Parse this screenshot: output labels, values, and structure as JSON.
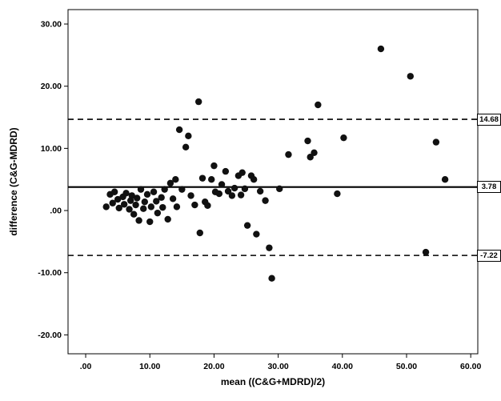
{
  "chart_data": {
    "type": "scatter",
    "title": "",
    "xlabel": "mean ((C&G+MDRD)/2)",
    "ylabel": "difference (C&G-MDRD)",
    "xlim": [
      -2.75,
      61.1
    ],
    "ylim": [
      -23.04,
      32.32
    ],
    "x_ticks": [
      0,
      10,
      20,
      30,
      40,
      50,
      60
    ],
    "x_tick_labels": [
      ".00",
      "10.00",
      "20.00",
      "30.00",
      "40.00",
      "50.00",
      "60.00"
    ],
    "y_ticks": [
      30,
      20,
      10,
      0,
      -10,
      -20
    ],
    "y_tick_labels": [
      "30.00",
      "20.00",
      "10.00",
      ".00",
      "-10.00",
      "-20.00"
    ],
    "grid": false,
    "legend": "none",
    "marker_color": "#111111",
    "reference_lines": [
      {
        "value": 14.68,
        "label": "14.68",
        "style": "dashed"
      },
      {
        "value": 3.78,
        "label": "3.78",
        "style": "solid"
      },
      {
        "value": -7.22,
        "label": "-7.22",
        "style": "dashed"
      }
    ],
    "points": [
      [
        3.2,
        0.6
      ],
      [
        3.8,
        2.6
      ],
      [
        4.2,
        1.2
      ],
      [
        4.5,
        3.0
      ],
      [
        5.0,
        1.8
      ],
      [
        5.2,
        0.4
      ],
      [
        5.8,
        2.2
      ],
      [
        6.0,
        1.0
      ],
      [
        6.3,
        2.8
      ],
      [
        6.8,
        0.2
      ],
      [
        7.0,
        1.6
      ],
      [
        7.2,
        2.4
      ],
      [
        7.5,
        -0.6
      ],
      [
        7.8,
        0.9
      ],
      [
        8.0,
        2.0
      ],
      [
        8.3,
        -1.6
      ],
      [
        8.6,
        3.4
      ],
      [
        9.0,
        0.3
      ],
      [
        9.2,
        1.4
      ],
      [
        9.6,
        2.6
      ],
      [
        10.0,
        -1.8
      ],
      [
        10.2,
        0.6
      ],
      [
        10.6,
        3.0
      ],
      [
        11.0,
        1.5
      ],
      [
        11.2,
        -0.4
      ],
      [
        11.8,
        2.1
      ],
      [
        12.0,
        0.5
      ],
      [
        12.3,
        3.4
      ],
      [
        12.8,
        -1.4
      ],
      [
        13.2,
        4.4
      ],
      [
        13.6,
        1.9
      ],
      [
        14.0,
        5.0
      ],
      [
        14.2,
        0.6
      ],
      [
        14.6,
        13.0
      ],
      [
        15.0,
        3.4
      ],
      [
        15.6,
        10.2
      ],
      [
        16.0,
        12.0
      ],
      [
        16.4,
        2.4
      ],
      [
        17.0,
        0.9
      ],
      [
        17.6,
        17.5
      ],
      [
        17.8,
        -3.6
      ],
      [
        18.2,
        5.2
      ],
      [
        18.6,
        1.4
      ],
      [
        19.0,
        0.8
      ],
      [
        19.6,
        5.0
      ],
      [
        20.0,
        7.2
      ],
      [
        20.2,
        3.0
      ],
      [
        20.8,
        2.7
      ],
      [
        21.2,
        4.2
      ],
      [
        21.8,
        6.3
      ],
      [
        22.2,
        3.1
      ],
      [
        22.8,
        2.4
      ],
      [
        23.2,
        3.6
      ],
      [
        23.8,
        5.6
      ],
      [
        24.2,
        2.5
      ],
      [
        24.4,
        6.1
      ],
      [
        24.8,
        3.5
      ],
      [
        25.2,
        -2.4
      ],
      [
        25.8,
        5.6
      ],
      [
        26.2,
        5.0
      ],
      [
        26.6,
        -3.8
      ],
      [
        27.2,
        3.1
      ],
      [
        28.0,
        1.6
      ],
      [
        28.6,
        -6.0
      ],
      [
        29.0,
        -10.9
      ],
      [
        30.2,
        3.5
      ],
      [
        31.6,
        9.0
      ],
      [
        34.6,
        11.2
      ],
      [
        35.0,
        8.6
      ],
      [
        35.6,
        9.3
      ],
      [
        36.2,
        17.0
      ],
      [
        39.2,
        2.7
      ],
      [
        40.2,
        11.7
      ],
      [
        46.0,
        26.0
      ],
      [
        50.6,
        21.6
      ],
      [
        53.0,
        -6.7
      ],
      [
        54.6,
        11.0
      ],
      [
        56.0,
        5.0
      ]
    ]
  }
}
